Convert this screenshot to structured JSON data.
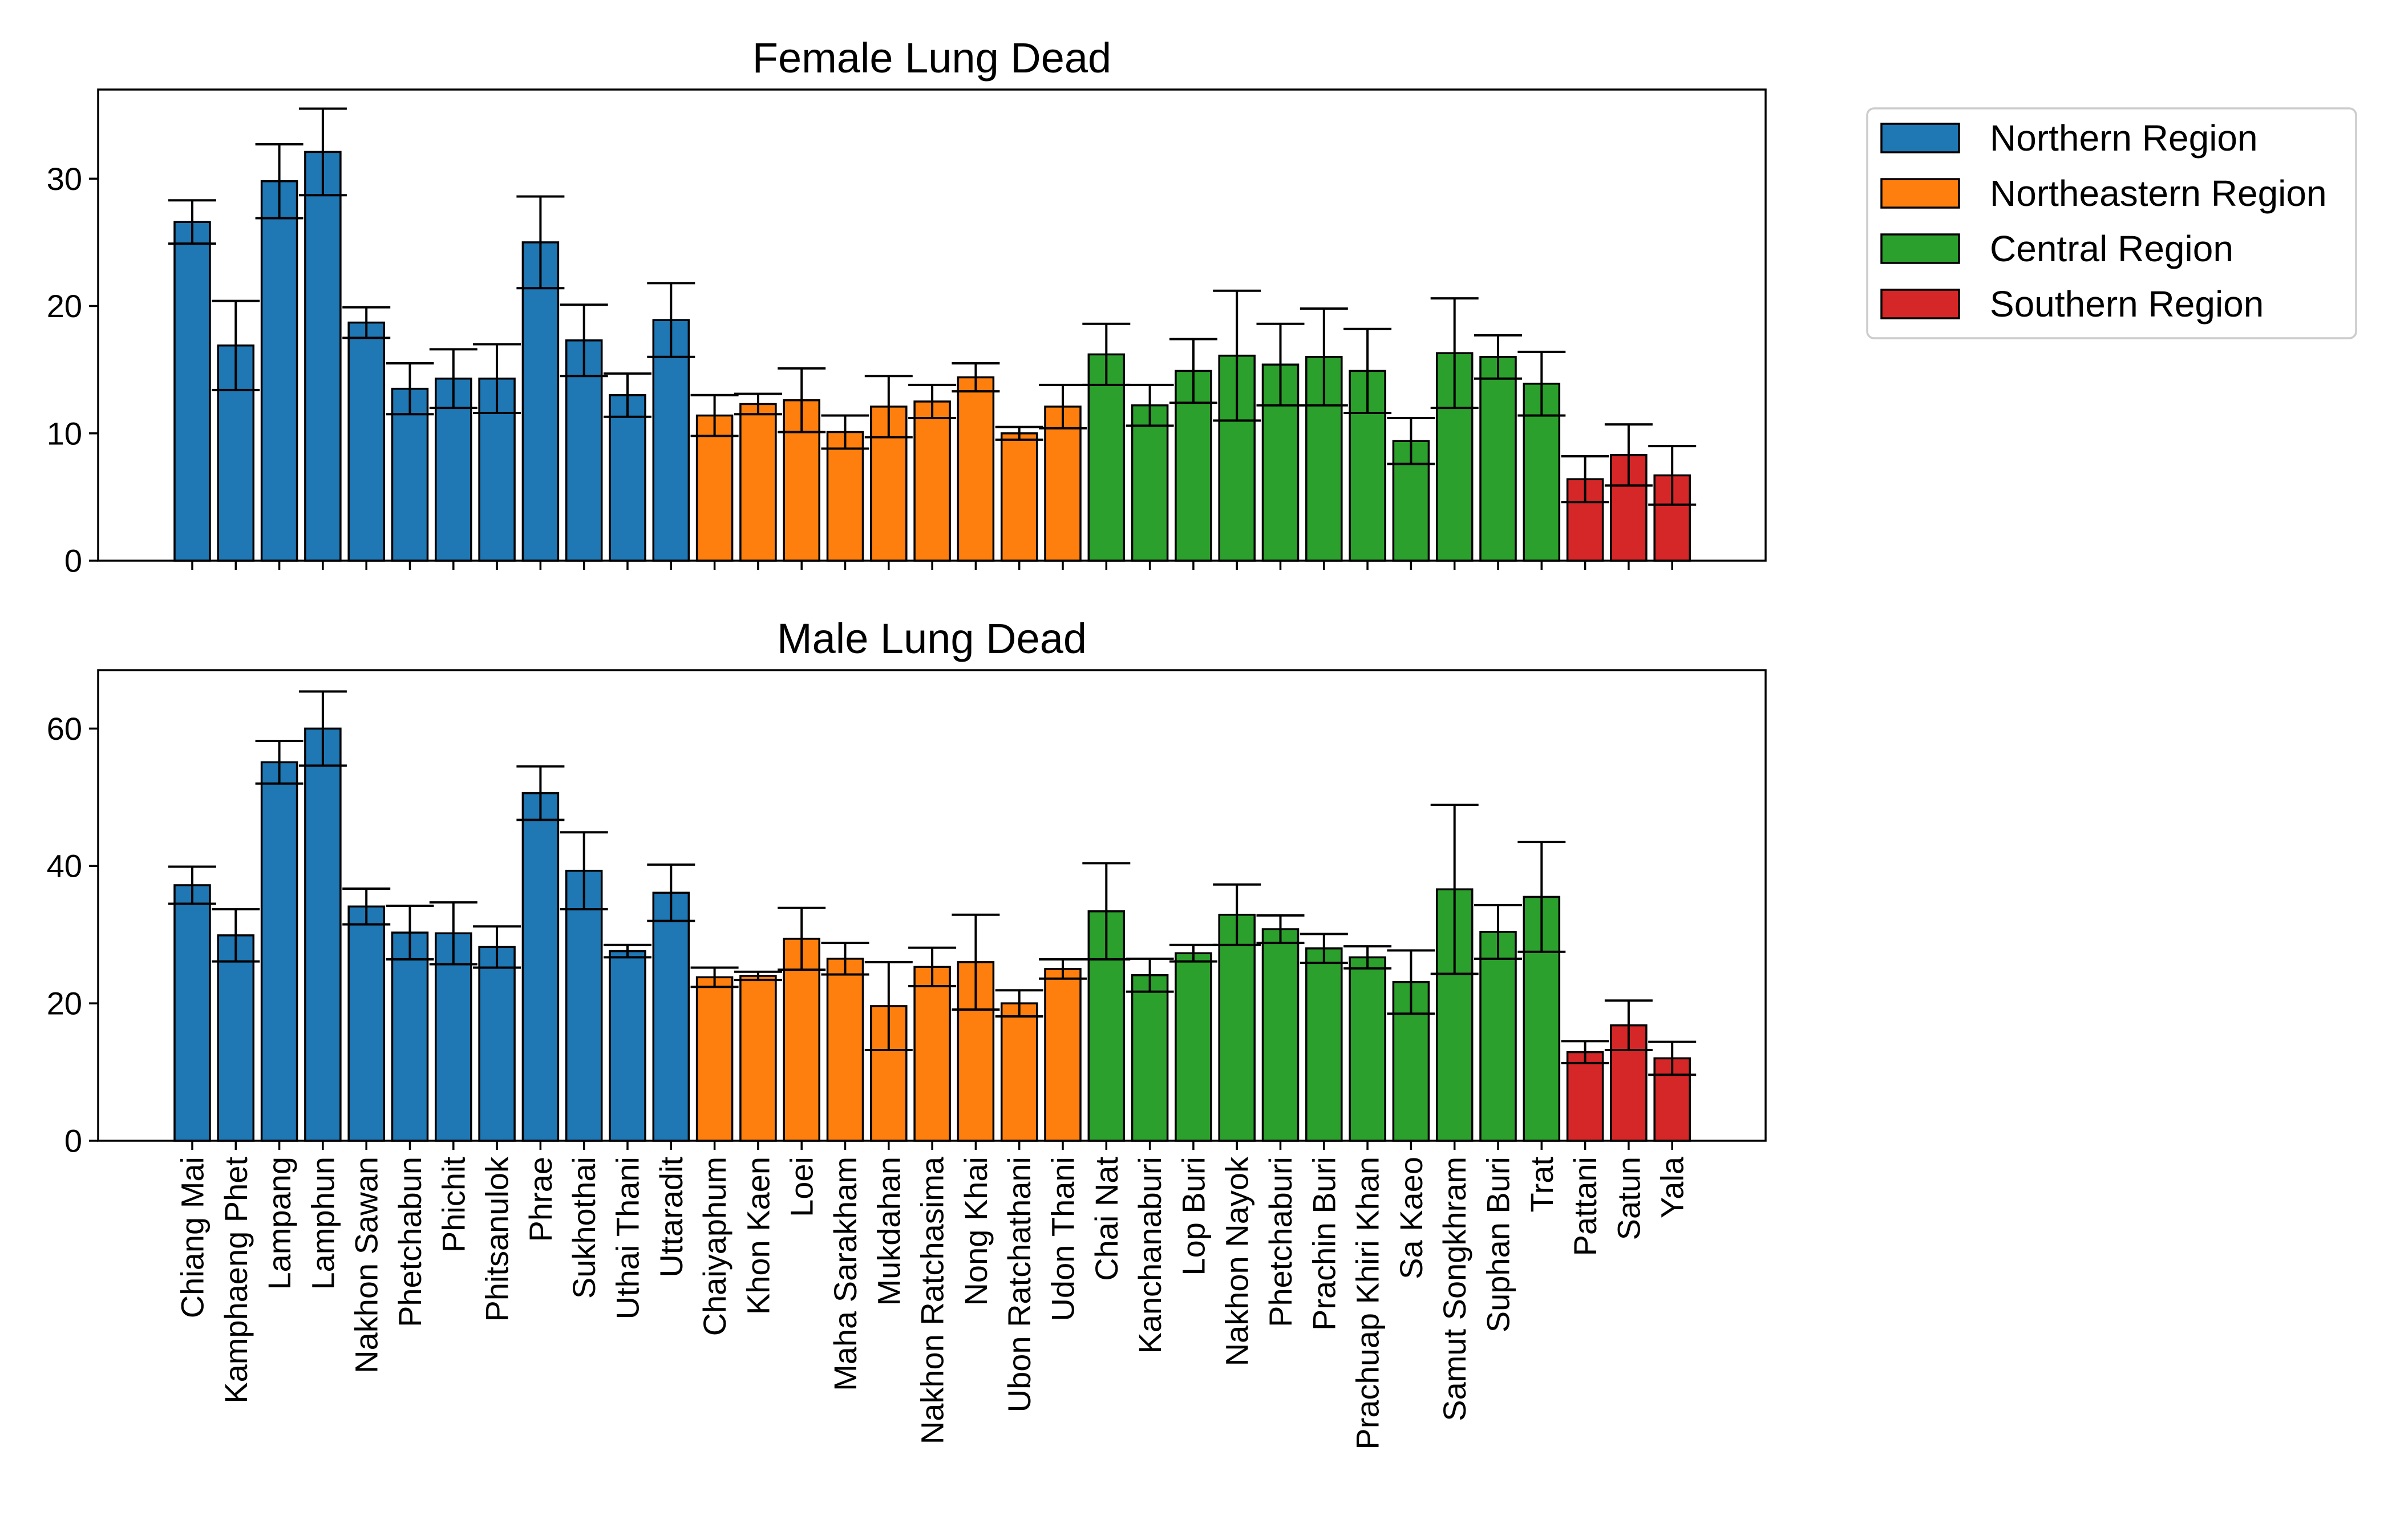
{
  "legend": {
    "placement": "outside-upper-right",
    "entries": [
      {
        "name": "Northern Region",
        "color": "#1f77b4"
      },
      {
        "name": "Northeastern Region",
        "color": "#ff7f0e"
      },
      {
        "name": "Central Region",
        "color": "#2ca02c"
      },
      {
        "name": "Southern Region",
        "color": "#d62728"
      }
    ]
  },
  "chart_data": [
    {
      "type": "bar",
      "title": "Female Lung Dead",
      "xlabel": "",
      "ylabel": "",
      "ylim": [
        0,
        37
      ],
      "yticks": [
        0,
        10,
        20,
        30
      ],
      "grid": false,
      "show_xtick_labels": false,
      "categories": [
        "Chiang Mai",
        "Kamphaeng Phet",
        "Lampang",
        "Lamphun",
        "Nakhon Sawan",
        "Phetchabun",
        "Phichit",
        "Phitsanulok",
        "Phrae",
        "Sukhothai",
        "Uthai Thani",
        "Uttaradit",
        "Chaiyaphum",
        "Khon Kaen",
        "Loei",
        "Maha Sarakham",
        "Mukdahan",
        "Nakhon Ratchasima",
        "Nong Khai",
        "Ubon Ratchathani",
        "Udon Thani",
        "Chai Nat",
        "Kanchanaburi",
        "Lop Buri",
        "Nakhon Nayok",
        "Phetchaburi",
        "Prachin Buri",
        "Prachuap Khiri Khan",
        "Sa Kaeo",
        "Samut Songkhram",
        "Suphan Buri",
        "Trat",
        "Pattani",
        "Satun",
        "Yala"
      ],
      "regions": [
        "Northern Region",
        "Northern Region",
        "Northern Region",
        "Northern Region",
        "Northern Region",
        "Northern Region",
        "Northern Region",
        "Northern Region",
        "Northern Region",
        "Northern Region",
        "Northern Region",
        "Northern Region",
        "Northeastern Region",
        "Northeastern Region",
        "Northeastern Region",
        "Northeastern Region",
        "Northeastern Region",
        "Northeastern Region",
        "Northeastern Region",
        "Northeastern Region",
        "Northeastern Region",
        "Central Region",
        "Central Region",
        "Central Region",
        "Central Region",
        "Central Region",
        "Central Region",
        "Central Region",
        "Central Region",
        "Central Region",
        "Central Region",
        "Central Region",
        "Southern Region",
        "Southern Region",
        "Southern Region"
      ],
      "values": [
        26.6,
        16.9,
        29.8,
        32.1,
        18.7,
        13.5,
        14.3,
        14.3,
        25.0,
        17.3,
        13.0,
        18.9,
        11.4,
        12.3,
        12.6,
        10.1,
        12.1,
        12.5,
        14.4,
        10.0,
        12.1,
        16.2,
        12.2,
        14.9,
        16.1,
        15.4,
        16.0,
        14.9,
        9.4,
        16.3,
        16.0,
        13.9,
        6.4,
        8.3,
        6.7
      ],
      "error": [
        1.7,
        3.5,
        2.9,
        3.4,
        1.2,
        2.0,
        2.3,
        2.7,
        3.6,
        2.8,
        1.7,
        2.9,
        1.6,
        0.8,
        2.5,
        1.3,
        2.4,
        1.3,
        1.1,
        0.5,
        1.7,
        2.4,
        1.6,
        2.5,
        5.1,
        3.2,
        3.8,
        3.3,
        1.8,
        4.3,
        1.7,
        2.5,
        1.8,
        2.4,
        2.3
      ]
    },
    {
      "type": "bar",
      "title": "Male Lung Dead",
      "xlabel": "",
      "ylabel": "",
      "ylim": [
        0,
        68.5
      ],
      "yticks": [
        0,
        20,
        40,
        60
      ],
      "grid": false,
      "show_xtick_labels": true,
      "categories": [
        "Chiang Mai",
        "Kamphaeng Phet",
        "Lampang",
        "Lamphun",
        "Nakhon Sawan",
        "Phetchabun",
        "Phichit",
        "Phitsanulok",
        "Phrae",
        "Sukhothai",
        "Uthai Thani",
        "Uttaradit",
        "Chaiyaphum",
        "Khon Kaen",
        "Loei",
        "Maha Sarakham",
        "Mukdahan",
        "Nakhon Ratchasima",
        "Nong Khai",
        "Ubon Ratchathani",
        "Udon Thani",
        "Chai Nat",
        "Kanchanaburi",
        "Lop Buri",
        "Nakhon Nayok",
        "Phetchaburi",
        "Prachin Buri",
        "Prachuap Khiri Khan",
        "Sa Kaeo",
        "Samut Songkhram",
        "Suphan Buri",
        "Trat",
        "Pattani",
        "Satun",
        "Yala"
      ],
      "regions": [
        "Northern Region",
        "Northern Region",
        "Northern Region",
        "Northern Region",
        "Northern Region",
        "Northern Region",
        "Northern Region",
        "Northern Region",
        "Northern Region",
        "Northern Region",
        "Northern Region",
        "Northern Region",
        "Northeastern Region",
        "Northeastern Region",
        "Northeastern Region",
        "Northeastern Region",
        "Northeastern Region",
        "Northeastern Region",
        "Northeastern Region",
        "Northeastern Region",
        "Northeastern Region",
        "Central Region",
        "Central Region",
        "Central Region",
        "Central Region",
        "Central Region",
        "Central Region",
        "Central Region",
        "Central Region",
        "Central Region",
        "Central Region",
        "Central Region",
        "Southern Region",
        "Southern Region",
        "Southern Region"
      ],
      "values": [
        37.2,
        29.9,
        55.1,
        60.0,
        34.1,
        30.3,
        30.2,
        28.2,
        50.6,
        39.3,
        27.6,
        36.1,
        23.8,
        24.0,
        29.4,
        26.5,
        19.6,
        25.3,
        26.0,
        20.0,
        25.0,
        33.4,
        24.1,
        27.3,
        32.9,
        30.8,
        28.0,
        26.7,
        23.1,
        36.6,
        30.4,
        35.5,
        12.9,
        16.8,
        12.0
      ],
      "error": [
        2.7,
        3.8,
        3.1,
        5.4,
        2.6,
        3.9,
        4.5,
        3.0,
        3.9,
        5.6,
        0.9,
        4.1,
        1.4,
        0.6,
        4.5,
        2.3,
        6.4,
        2.8,
        6.9,
        1.9,
        1.4,
        7.0,
        2.4,
        1.2,
        4.4,
        2.0,
        2.1,
        1.6,
        4.6,
        12.3,
        3.9,
        8.0,
        1.6,
        3.6,
        2.4
      ]
    }
  ]
}
